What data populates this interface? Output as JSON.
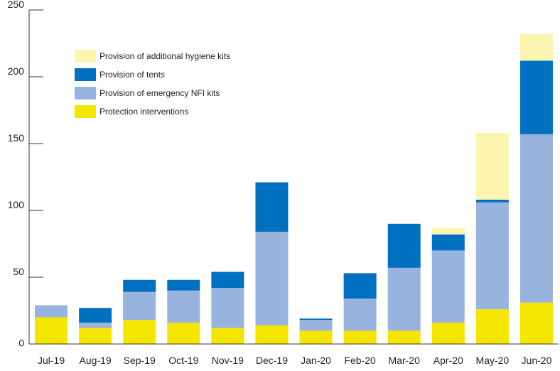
{
  "chart_data": {
    "type": "bar",
    "stacked": true,
    "title": "",
    "xlabel": "",
    "ylabel": "",
    "ylim": [
      0,
      250
    ],
    "yticks": [
      0,
      50,
      100,
      150,
      200,
      250
    ],
    "grid": false,
    "legend_position": "top-left",
    "categories": [
      "Jul-19",
      "Aug-19",
      "Sep-19",
      "Oct-19",
      "Nov-19",
      "Dec-19",
      "Jan-20",
      "Feb-20",
      "Mar-20",
      "Apr-20",
      "May-20",
      "Jun-20"
    ],
    "series": [
      {
        "name": "Protection interventions",
        "color": "#f5e600",
        "values": [
          20,
          12,
          18,
          16,
          12,
          14,
          10,
          10,
          10,
          16,
          26,
          31
        ]
      },
      {
        "name": "Provision of emergency NFI kits",
        "color": "#98b4de",
        "values": [
          9,
          4,
          21,
          24,
          30,
          70,
          8,
          24,
          47,
          54,
          80,
          126
        ]
      },
      {
        "name": "Provision of tents",
        "color": "#0070c0",
        "values": [
          0,
          11,
          9,
          8,
          12,
          37,
          1,
          19,
          33,
          12,
          2,
          55
        ]
      },
      {
        "name": "Provision of additional hygiene kits",
        "color": "#fbf5b0",
        "values": [
          0,
          0,
          0,
          0,
          0,
          0,
          0,
          0,
          0,
          5,
          50,
          20
        ]
      }
    ],
    "legend_order": [
      "Provision of additional hygiene kits",
      "Provision of tents",
      "Provision of emergency NFI kits",
      "Protection interventions"
    ]
  }
}
